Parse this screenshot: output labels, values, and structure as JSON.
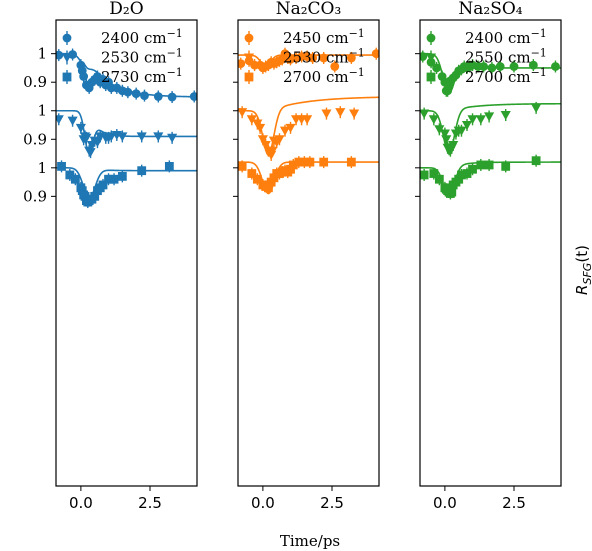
{
  "figure": {
    "xlabel": "Time/ps",
    "ylabel": "R_SFG(t)",
    "ylabel_main": "R",
    "ylabel_sub": "SFG",
    "ylabel_tail": "(t)",
    "xlim": [
      -0.9,
      4.2
    ],
    "xticks": [
      0,
      2.5
    ],
    "xtick_labels": [
      "0.0",
      "2.5"
    ],
    "yticks_per_trace": [
      1.0,
      0.9
    ],
    "ytick_labels": [
      "1",
      "0.9"
    ],
    "trace_offsets": [
      0,
      -0.2,
      -0.4
    ],
    "ylim": [
      -0.515,
      1.118
    ]
  },
  "chart_data": [
    {
      "type": "scatter",
      "title": "D₂O",
      "color": "#1f77b4",
      "legend_position": "top",
      "series": [
        {
          "name": "2400 cm⁻¹",
          "label_main": "2400 cm",
          "label_sup": "−1",
          "marker": "circle",
          "offset": 0,
          "points": [
            [
              -0.8,
              0.995
            ],
            [
              -0.3,
              0.997
            ],
            [
              0,
              0.96
            ],
            [
              0.05,
              0.94
            ],
            [
              0.1,
              0.92
            ],
            [
              0.2,
              0.89
            ],
            [
              0.3,
              0.88
            ],
            [
              0.4,
              0.9
            ],
            [
              0.5,
              0.91
            ],
            [
              0.6,
              0.92
            ],
            [
              0.7,
              0.9
            ],
            [
              0.8,
              0.91
            ],
            [
              0.9,
              0.89
            ],
            [
              1.0,
              0.9
            ],
            [
              1.1,
              0.88
            ],
            [
              1.3,
              0.88
            ],
            [
              1.5,
              0.87
            ],
            [
              1.7,
              0.865
            ],
            [
              2.0,
              0.86
            ],
            [
              2.3,
              0.853
            ],
            [
              2.8,
              0.85
            ],
            [
              3.3,
              0.848
            ],
            [
              4.1,
              0.85
            ]
          ],
          "fit": {
            "base": 1.0,
            "amp": 0.04,
            "t0": 0.15,
            "width": 0.25,
            "level": 0.848,
            "rise": 0.1,
            "tau": 0.8
          }
        },
        {
          "name": "2530 cm⁻¹",
          "label_main": "2530 cm",
          "label_sup": "−1",
          "marker": "triangle-down",
          "offset": -0.2,
          "points": [
            [
              -0.8,
              0.97
            ],
            [
              -0.3,
              0.965
            ],
            [
              0,
              0.94
            ],
            [
              0.1,
              0.9
            ],
            [
              0.15,
              0.91
            ],
            [
              0.2,
              0.905
            ],
            [
              0.3,
              0.86
            ],
            [
              0.35,
              0.855
            ],
            [
              0.4,
              0.88
            ],
            [
              0.5,
              0.895
            ],
            [
              0.6,
              0.89
            ],
            [
              0.7,
              0.91
            ],
            [
              0.9,
              0.905
            ],
            [
              1.0,
              0.905
            ],
            [
              1.1,
              0.91
            ],
            [
              1.3,
              0.915
            ],
            [
              1.5,
              0.91
            ],
            [
              2.2,
              0.91
            ],
            [
              2.8,
              0.91
            ],
            [
              3.3,
              0.905
            ]
          ],
          "fit": {
            "base": 1.0,
            "amp": 0.145,
            "t0": 0.28,
            "width": 0.2,
            "level": 0.91,
            "rise": 0.1,
            "tau": 0.3
          }
        },
        {
          "name": "2730 cm⁻¹",
          "label_main": "2730 cm",
          "label_sup": "−1",
          "marker": "square",
          "offset": -0.4,
          "points": [
            [
              -0.7,
              1.005
            ],
            [
              -0.4,
              0.975
            ],
            [
              -0.2,
              0.96
            ],
            [
              0,
              0.93
            ],
            [
              0.05,
              0.92
            ],
            [
              0.1,
              0.905
            ],
            [
              0.15,
              0.9
            ],
            [
              0.2,
              0.885
            ],
            [
              0.25,
              0.88
            ],
            [
              0.3,
              0.885
            ],
            [
              0.4,
              0.89
            ],
            [
              0.5,
              0.9
            ],
            [
              0.6,
              0.92
            ],
            [
              0.7,
              0.93
            ],
            [
              0.8,
              0.94
            ],
            [
              1.0,
              0.96
            ],
            [
              1.2,
              0.96
            ],
            [
              1.5,
              0.97
            ],
            [
              2.2,
              0.99
            ],
            [
              3.2,
              1.005
            ]
          ],
          "fit": {
            "base": 1.0,
            "amp": 0.105,
            "t0": 0.3,
            "width": 0.3,
            "level": 0.99,
            "rise": 0.35,
            "tau": 0.4
          }
        }
      ]
    },
    {
      "type": "scatter",
      "title": "Na₂CO₃",
      "color": "#ff7f0e",
      "legend_position": "top",
      "series": [
        {
          "name": "2450 cm⁻¹",
          "label_main": "2450 cm",
          "label_sup": "−1",
          "marker": "circle",
          "offset": 0,
          "points": [
            [
              -0.8,
              0.965
            ],
            [
              -0.5,
              0.975
            ],
            [
              -0.3,
              0.96
            ],
            [
              -0.1,
              0.96
            ],
            [
              0,
              0.95
            ],
            [
              0.1,
              0.955
            ],
            [
              0.2,
              0.96
            ],
            [
              0.3,
              0.97
            ],
            [
              0.4,
              0.965
            ],
            [
              0.5,
              0.97
            ],
            [
              0.6,
              0.975
            ],
            [
              0.7,
              0.98
            ],
            [
              0.8,
              1.0
            ],
            [
              0.9,
              0.985
            ],
            [
              1.0,
              0.98
            ],
            [
              1.2,
              0.985
            ],
            [
              1.4,
              0.99
            ],
            [
              1.6,
              0.99
            ],
            [
              1.8,
              0.985
            ],
            [
              2.2,
              0.985
            ],
            [
              2.6,
              0.955
            ],
            [
              3.2,
              0.985
            ],
            [
              4.1,
              1.0
            ]
          ],
          "fit": {
            "base": 0.995,
            "amp": 0.04,
            "t0": 0.1,
            "width": 0.25,
            "level": 0.995,
            "rise": 0.1,
            "tau": 0.4
          }
        },
        {
          "name": "2530 cm⁻¹",
          "label_main": "2530 cm",
          "label_sup": "−1",
          "marker": "triangle-down",
          "offset": -0.2,
          "points": [
            [
              -0.75,
              0.995
            ],
            [
              -0.4,
              0.97
            ],
            [
              -0.2,
              0.955
            ],
            [
              -0.1,
              0.94
            ],
            [
              0,
              0.9
            ],
            [
              0.1,
              0.88
            ],
            [
              0.2,
              0.86
            ],
            [
              0.3,
              0.845
            ],
            [
              0.35,
              0.86
            ],
            [
              0.4,
              0.895
            ],
            [
              0.5,
              0.89
            ],
            [
              0.6,
              0.9
            ],
            [
              0.8,
              0.93
            ],
            [
              1.0,
              0.94
            ],
            [
              1.2,
              0.97
            ],
            [
              1.4,
              0.97
            ],
            [
              1.6,
              0.97
            ],
            [
              2.3,
              0.99
            ],
            [
              2.8,
              0.995
            ],
            [
              3.3,
              0.99
            ]
          ],
          "fit": {
            "base": 1.0,
            "amp": 0.155,
            "t0": 0.2,
            "width": 0.28,
            "level": 1.05,
            "rise": 0.15,
            "tau": 1.4
          }
        },
        {
          "name": "2700 cm⁻¹",
          "label_main": "2700 cm",
          "label_sup": "−1",
          "marker": "square",
          "offset": -0.4,
          "points": [
            [
              -0.75,
              1.005
            ],
            [
              -0.4,
              0.98
            ],
            [
              -0.2,
              0.96
            ],
            [
              0,
              0.94
            ],
            [
              0.1,
              0.935
            ],
            [
              0.2,
              0.93
            ],
            [
              0.3,
              0.95
            ],
            [
              0.4,
              0.965
            ],
            [
              0.5,
              0.98
            ],
            [
              0.6,
              0.98
            ],
            [
              0.7,
              0.985
            ],
            [
              0.8,
              0.99
            ],
            [
              0.9,
              0.985
            ],
            [
              1.0,
              0.995
            ],
            [
              1.1,
              1.01
            ],
            [
              1.3,
              1.02
            ],
            [
              1.5,
              1.02
            ],
            [
              1.7,
              1.02
            ],
            [
              2.2,
              1.02
            ],
            [
              3.2,
              1.02
            ]
          ],
          "fit": {
            "base": 1.02,
            "amp": 0.11,
            "t0": 0.2,
            "width": 0.3,
            "level": 1.02,
            "rise": 0.2,
            "tau": 0.3
          }
        }
      ]
    },
    {
      "type": "scatter",
      "title": "Na₂SO₄",
      "color": "#2ca02c",
      "legend_position": "top",
      "series": [
        {
          "name": "2400 cm⁻¹",
          "label_main": "2400 cm",
          "label_sup": "−1",
          "marker": "circle",
          "offset": 0,
          "points": [
            [
              -0.8,
              0.99
            ],
            [
              -0.5,
              0.97
            ],
            [
              -0.3,
              0.95
            ],
            [
              -0.1,
              0.92
            ],
            [
              0,
              0.9
            ],
            [
              0.05,
              0.87
            ],
            [
              0.1,
              0.87
            ],
            [
              0.15,
              0.885
            ],
            [
              0.2,
              0.905
            ],
            [
              0.3,
              0.915
            ],
            [
              0.4,
              0.925
            ],
            [
              0.5,
              0.94
            ],
            [
              0.6,
              0.945
            ],
            [
              0.7,
              0.955
            ],
            [
              0.8,
              0.95
            ],
            [
              0.9,
              0.955
            ],
            [
              1.0,
              0.96
            ],
            [
              1.2,
              0.955
            ],
            [
              1.4,
              0.955
            ],
            [
              1.7,
              0.95
            ],
            [
              2.0,
              0.955
            ],
            [
              2.5,
              0.955
            ],
            [
              3.2,
              0.96
            ],
            [
              4.0,
              0.955
            ]
          ],
          "fit": {
            "base": 1.0,
            "amp": 0.13,
            "t0": 0.12,
            "width": 0.28,
            "level": 0.95,
            "rise": 0.12,
            "tau": 0.25
          }
        },
        {
          "name": "2550 cm⁻¹",
          "label_main": "2550 cm",
          "label_sup": "−1",
          "marker": "triangle-down",
          "offset": -0.2,
          "points": [
            [
              -0.75,
              0.99
            ],
            [
              -0.4,
              0.97
            ],
            [
              -0.2,
              0.935
            ],
            [
              0,
              0.92
            ],
            [
              0.05,
              0.9
            ],
            [
              0.1,
              0.87
            ],
            [
              0.15,
              0.865
            ],
            [
              0.2,
              0.86
            ],
            [
              0.25,
              0.87
            ],
            [
              0.3,
              0.88
            ],
            [
              0.4,
              0.92
            ],
            [
              0.5,
              0.93
            ],
            [
              0.6,
              0.93
            ],
            [
              0.8,
              0.95
            ],
            [
              1.0,
              0.97
            ],
            [
              1.3,
              0.97
            ],
            [
              1.6,
              0.98
            ],
            [
              2.2,
              0.985
            ],
            [
              3.3,
              1.01
            ]
          ],
          "fit": {
            "base": 1.0,
            "amp": 0.15,
            "t0": 0.15,
            "width": 0.28,
            "level": 1.025,
            "rise": 0.15,
            "tau": 1.0
          }
        },
        {
          "name": "2700 cm⁻¹",
          "label_main": "2700 cm",
          "label_sup": "−1",
          "marker": "square",
          "offset": -0.4,
          "points": [
            [
              -0.75,
              0.975
            ],
            [
              -0.4,
              0.98
            ],
            [
              -0.2,
              0.96
            ],
            [
              0,
              0.93
            ],
            [
              0.05,
              0.925
            ],
            [
              0.1,
              0.92
            ],
            [
              0.15,
              0.915
            ],
            [
              0.2,
              0.91
            ],
            [
              0.25,
              0.915
            ],
            [
              0.3,
              0.94
            ],
            [
              0.4,
              0.95
            ],
            [
              0.5,
              0.96
            ],
            [
              0.6,
              0.975
            ],
            [
              0.8,
              0.98
            ],
            [
              1.0,
              0.995
            ],
            [
              1.3,
              1.01
            ],
            [
              1.6,
              1.01
            ],
            [
              2.2,
              1.005
            ],
            [
              3.3,
              1.025
            ]
          ],
          "fit": {
            "base": 1.0,
            "amp": 0.1,
            "t0": 0.15,
            "width": 0.28,
            "level": 1.02,
            "rise": 0.2,
            "tau": 0.5
          }
        }
      ]
    }
  ]
}
